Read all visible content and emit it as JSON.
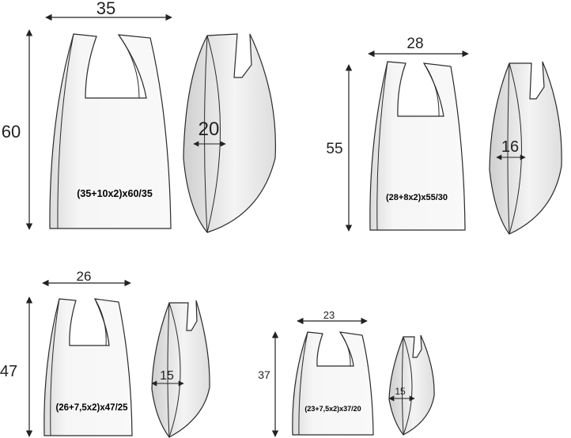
{
  "bags": [
    {
      "width_label": "35",
      "height_label": "60",
      "gusset_label": "20",
      "spec_label": "(35+10x2)x60/35"
    },
    {
      "width_label": "28",
      "height_label": "55",
      "gusset_label": "16",
      "spec_label": "(28+8x2)x55/30"
    },
    {
      "width_label": "26",
      "height_label": "47",
      "gusset_label": "15",
      "spec_label": "(26+7,5x2)x47/25"
    },
    {
      "width_label": "23",
      "height_label": "37",
      "gusset_label": "15",
      "spec_label": "(23+7,5x2)x37/20"
    }
  ],
  "colors": {
    "line": "#2a2a2a",
    "fill": "#f4f4f4",
    "shade": "#dcdcdc"
  }
}
